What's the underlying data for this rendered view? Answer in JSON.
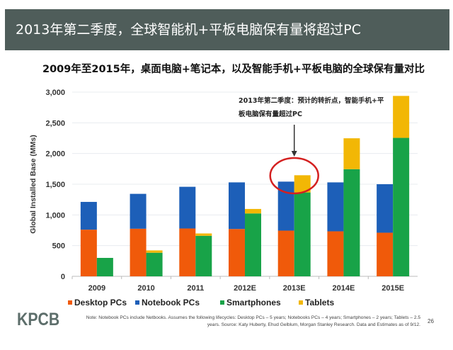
{
  "header": {
    "title": "2013年第二季度，全球智能机+平板电脑保有量将超过PC"
  },
  "subtitle": "2009年至2015年，桌面电脑+笔记本，以及智能手机+平板电脑的全球保有量对比",
  "chart_data": {
    "type": "bar",
    "stacked": true,
    "grouped": true,
    "categories": [
      "2009",
      "2010",
      "2011",
      "2012E",
      "2013E",
      "2014E",
      "2015E"
    ],
    "ylabel": "Global Installed Base (MMs)",
    "ylim": [
      0,
      3000
    ],
    "yticks": [
      "0",
      "500",
      "1,000",
      "1,500",
      "2,000",
      "2,500",
      "3,000"
    ],
    "grid": true,
    "legend_position": "bottom",
    "groups": [
      {
        "stack": "PC",
        "series": [
          {
            "name": "Desktop PCs",
            "color": "#f05a0a",
            "values": [
              760,
              775,
              779,
              771,
              744,
              733,
              710
            ]
          },
          {
            "name": "Notebook PCs",
            "color": "#1d5fb8",
            "values": [
              452,
              568,
              679,
              759,
              798,
              797,
              790
            ]
          }
        ]
      },
      {
        "stack": "Mobile",
        "series": [
          {
            "name": "Smartphones",
            "color": "#18a348",
            "values": [
              300,
              384,
              660,
              1024,
              1366,
              1745,
              2255
            ]
          },
          {
            "name": "Tablets",
            "color": "#f2b705",
            "values": [
              0,
              38,
              38,
              73,
              280,
              503,
              683
            ]
          }
        ]
      }
    ],
    "annotation": {
      "text": "2013年第二季度：预计的转折点，智能手机+平板电脑保有量超过PC",
      "target": "2013E",
      "highlight_color": "#d42020"
    }
  },
  "footer": {
    "logo": "KPCB",
    "note": "Note: Notebook PCs include Netbooks. Assumes the following lifecycles: Desktop PCs – 5 years; Notebooks PCs – 4 years; Smartphones – 2 years; Tablets – 2.5 years. Source: Katy Huberty, Ehud Gelblum, Morgan Stanley Research. Data and Estimates as of 9/12.",
    "page_number": "26"
  }
}
